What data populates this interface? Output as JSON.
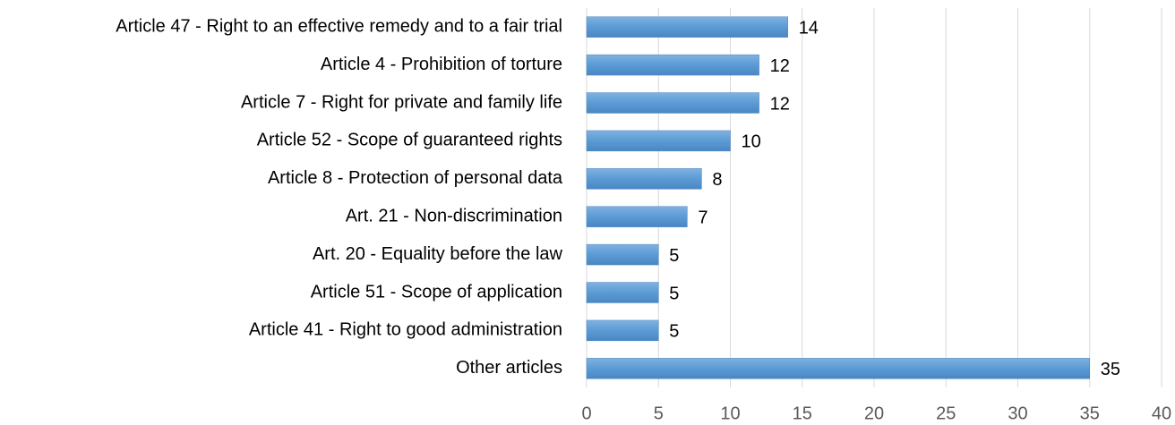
{
  "chart_data": {
    "type": "bar",
    "orientation": "horizontal",
    "categories": [
      "Article 47 - Right to an effective remedy and to a fair trial",
      "Article 4 - Prohibition of torture",
      "Article 7 - Right for private and family life",
      "Article 52 - Scope of guaranteed rights",
      "Article 8 - Protection of personal data",
      "Art. 21 - Non-discrimination",
      "Art. 20 - Equality before the law",
      "Article 51 - Scope of application",
      "Article 41 - Right to good administration",
      "Other articles"
    ],
    "values": [
      14,
      12,
      12,
      10,
      8,
      7,
      5,
      5,
      5,
      35
    ],
    "color": "#5b9bd5",
    "xlim": [
      0,
      40
    ],
    "xticks": [
      0,
      5,
      10,
      15,
      20,
      25,
      30,
      35,
      40
    ],
    "grid": true
  }
}
